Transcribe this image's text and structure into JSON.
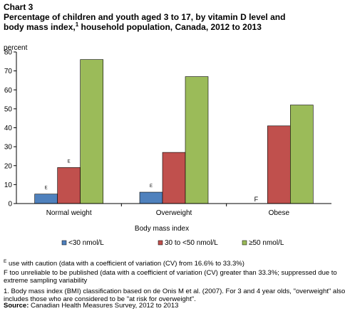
{
  "header": {
    "chart_label": "Chart 3",
    "title_line1": "Percentage of children and youth aged 3 to 17, by vitamin D level and",
    "title_line2_pre": "body mass index,",
    "title_line2_sup": "1",
    "title_line2_post": " household population, Canada, 2012 to 2013"
  },
  "chart_data": {
    "type": "bar",
    "title": "Percentage of children and youth aged 3 to 17, by vitamin D level and body mass index, household population, Canada, 2012 to 2013",
    "ylabel": "percent",
    "xlabel": "Body mass index",
    "ylim": [
      0,
      80
    ],
    "yticks": [
      0,
      10,
      20,
      30,
      40,
      50,
      60,
      70,
      80
    ],
    "categories": [
      "Normal weight",
      "Overweight",
      "Obese"
    ],
    "series": [
      {
        "name": "<30 nmol/L",
        "color": "#4f81bd",
        "values": [
          5,
          6,
          null
        ],
        "flags": [
          "E",
          "E",
          "F"
        ]
      },
      {
        "name": "30 to <50 nmol/L",
        "color": "#c0504d",
        "values": [
          19,
          27,
          41
        ],
        "flags": [
          "E",
          "",
          ""
        ]
      },
      {
        "name": "≥50 nmol/L",
        "color": "#9bbb59",
        "values": [
          76,
          67,
          52
        ],
        "flags": [
          "",
          "",
          ""
        ]
      }
    ],
    "grid": false,
    "legend_position": "bottom"
  },
  "notes": {
    "e_sup": "E",
    "e_text": " use with caution (data with a coefficient of variation (CV) from 16.6% to 33.3%)",
    "f_line1": "F too unreliable to be published (data with a coefficient of variation (CV) greater than 33.3%;  suppressed due to",
    "f_line2": "extreme sampling variability",
    "n1_line1": "1. Body mass index (BMI) classification based on de Onis M et al.  (2007).  For 3 and 4 year olds, \"overweight\" also",
    "n1_line2": "includes those who are considered to be \"at risk for overweight\"."
  },
  "source": {
    "label": "Source:",
    "text": " Canadian Health Measures Survey, 2012 to 2013"
  }
}
